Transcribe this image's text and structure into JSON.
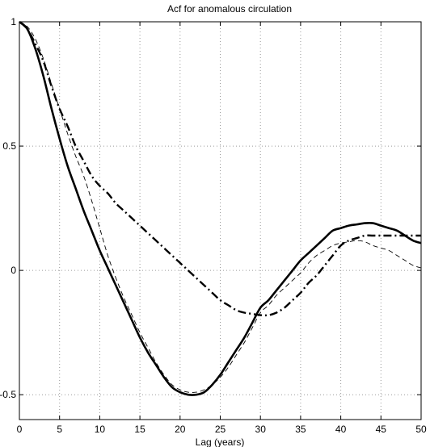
{
  "chart_data": {
    "type": "line",
    "title": "Acf for anomalous circulation",
    "xlabel": "Lag (years)",
    "ylabel": "",
    "xlim": [
      0,
      50
    ],
    "ylim": [
      -0.6,
      1
    ],
    "xticks": [
      0,
      5,
      10,
      15,
      20,
      25,
      30,
      35,
      40,
      45,
      50
    ],
    "xtick_labels": [
      "0",
      "5",
      "10",
      "15",
      "20",
      "25",
      "30",
      "35",
      "40",
      "45",
      "50"
    ],
    "yticks": [
      -0.5,
      0,
      0.5,
      1
    ],
    "ytick_labels": [
      "-0.5",
      "0",
      "0.5",
      "1"
    ],
    "grid": true,
    "legend": "none",
    "series": [
      {
        "style": "solid",
        "color": "#000000",
        "x": [
          0,
          1,
          2,
          3,
          4,
          5,
          6,
          7,
          8,
          9,
          10,
          11,
          12,
          13,
          14,
          15,
          16,
          17,
          18,
          19,
          20,
          21,
          22,
          23,
          24,
          25,
          26,
          27,
          28,
          29,
          30,
          31,
          32,
          33,
          34,
          35,
          36,
          37,
          38,
          39,
          40,
          41,
          42,
          43,
          44,
          45,
          46,
          47,
          48,
          49,
          50
        ],
        "values": [
          1.0,
          0.97,
          0.89,
          0.78,
          0.65,
          0.53,
          0.42,
          0.33,
          0.24,
          0.16,
          0.08,
          0.01,
          -0.06,
          -0.13,
          -0.2,
          -0.27,
          -0.33,
          -0.38,
          -0.43,
          -0.47,
          -0.49,
          -0.5,
          -0.5,
          -0.49,
          -0.46,
          -0.42,
          -0.37,
          -0.32,
          -0.27,
          -0.21,
          -0.15,
          -0.12,
          -0.08,
          -0.04,
          0.0,
          0.04,
          0.07,
          0.1,
          0.13,
          0.16,
          0.17,
          0.18,
          0.185,
          0.19,
          0.19,
          0.18,
          0.17,
          0.16,
          0.14,
          0.12,
          0.11
        ]
      },
      {
        "style": "dashed",
        "color": "#000000",
        "x": [
          0,
          1,
          2,
          3,
          4,
          5,
          6,
          7,
          8,
          9,
          10,
          11,
          12,
          13,
          14,
          15,
          16,
          17,
          18,
          19,
          20,
          21,
          22,
          23,
          24,
          25,
          26,
          27,
          28,
          29,
          30,
          31,
          32,
          33,
          34,
          35,
          36,
          37,
          38,
          39,
          40,
          41,
          42,
          43,
          44,
          45,
          46,
          47,
          48,
          49,
          50
        ],
        "values": [
          1.0,
          0.98,
          0.93,
          0.85,
          0.75,
          0.65,
          0.55,
          0.46,
          0.38,
          0.28,
          0.17,
          0.06,
          -0.03,
          -0.11,
          -0.18,
          -0.25,
          -0.31,
          -0.37,
          -0.42,
          -0.46,
          -0.48,
          -0.49,
          -0.49,
          -0.48,
          -0.46,
          -0.43,
          -0.39,
          -0.34,
          -0.29,
          -0.23,
          -0.17,
          -0.14,
          -0.1,
          -0.07,
          -0.04,
          -0.01,
          0.03,
          0.06,
          0.08,
          0.1,
          0.11,
          0.115,
          0.12,
          0.115,
          0.1,
          0.09,
          0.08,
          0.06,
          0.04,
          0.02,
          0.01
        ]
      },
      {
        "style": "dash-dot",
        "color": "#000000",
        "x": [
          0,
          1,
          2,
          3,
          4,
          5,
          6,
          7,
          8,
          9,
          10,
          11,
          12,
          13,
          14,
          15,
          16,
          17,
          18,
          19,
          20,
          21,
          22,
          23,
          24,
          25,
          26,
          27,
          28,
          29,
          30,
          31,
          32,
          33,
          34,
          35,
          36,
          37,
          38,
          39,
          40,
          41,
          42,
          43,
          44,
          45,
          46,
          47,
          48,
          49,
          50
        ],
        "values": [
          1.0,
          0.97,
          0.91,
          0.84,
          0.74,
          0.65,
          0.58,
          0.5,
          0.44,
          0.38,
          0.34,
          0.31,
          0.27,
          0.24,
          0.21,
          0.18,
          0.15,
          0.12,
          0.09,
          0.06,
          0.03,
          0.0,
          -0.03,
          -0.06,
          -0.09,
          -0.12,
          -0.14,
          -0.16,
          -0.17,
          -0.175,
          -0.18,
          -0.18,
          -0.17,
          -0.15,
          -0.12,
          -0.09,
          -0.05,
          -0.02,
          0.02,
          0.06,
          0.1,
          0.12,
          0.13,
          0.14,
          0.14,
          0.14,
          0.14,
          0.14,
          0.14,
          0.14,
          0.14
        ]
      }
    ]
  }
}
